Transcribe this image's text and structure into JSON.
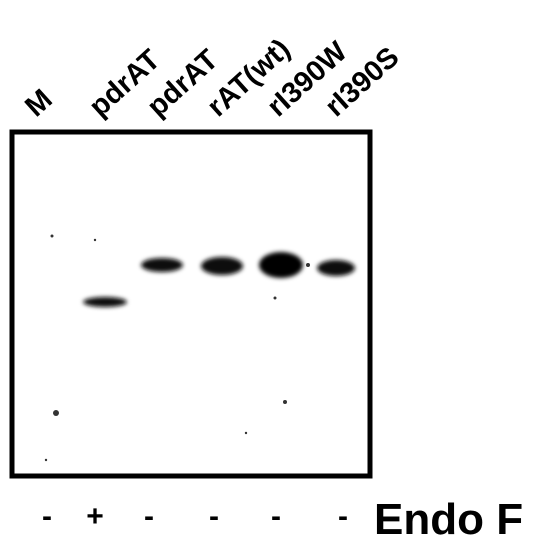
{
  "lanes": [
    {
      "label": "M",
      "treatment": "-"
    },
    {
      "label": "pdrAT",
      "treatment": "+"
    },
    {
      "label": "pdrAT",
      "treatment": "-"
    },
    {
      "label": "rAT(wt)",
      "treatment": "-"
    },
    {
      "label": "rI390W",
      "treatment": "-"
    },
    {
      "label": "rI390S",
      "treatment": "-"
    }
  ],
  "treatment_label": "Endo F"
}
